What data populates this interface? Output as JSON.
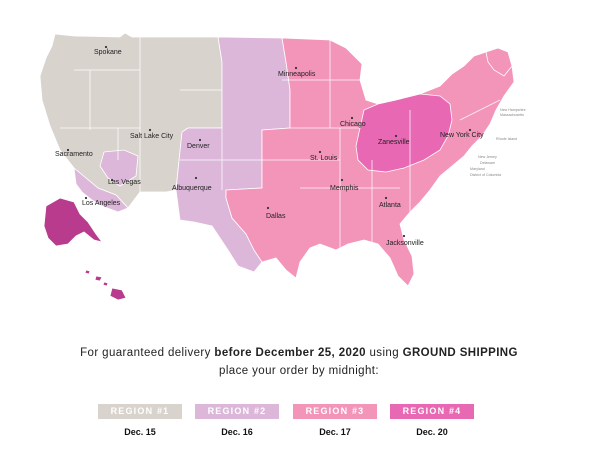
{
  "map": {
    "colors": {
      "region1": "#d9d3ce",
      "region2": "#ddb7da",
      "region3": "#f394b9",
      "region4": "#e868b4",
      "region4_dark": "#b83b8e",
      "border": "#ffffff",
      "dot": "#333333"
    },
    "cities": [
      {
        "name": "Spokane",
        "region": 1
      },
      {
        "name": "Salt Lake City",
        "region": 1
      },
      {
        "name": "Sacramento",
        "region": 1
      },
      {
        "name": "Las Vegas",
        "region": 2
      },
      {
        "name": "Los Angeles",
        "region": 2
      },
      {
        "name": "Denver",
        "region": 2
      },
      {
        "name": "Albuquerque",
        "region": 2
      },
      {
        "name": "Minneapolis",
        "region": 3
      },
      {
        "name": "Chicago",
        "region": 3
      },
      {
        "name": "St. Louis",
        "region": 3
      },
      {
        "name": "Memphis",
        "region": 3
      },
      {
        "name": "Dallas",
        "region": 3
      },
      {
        "name": "Atlanta",
        "region": 3
      },
      {
        "name": "Jacksonville",
        "region": 3
      },
      {
        "name": "Zanesville",
        "region": 4
      },
      {
        "name": "New York City",
        "region": 3
      }
    ],
    "state_labels": [
      "New Hampshire",
      "Massachusetts",
      "Rhode Island",
      "New Jersey",
      "Delaware",
      "Maryland",
      "District of Columbia"
    ]
  },
  "message": {
    "line1_pre": "For guaranteed delivery ",
    "line1_bold1": "before December 25, 2020",
    "line1_mid": " using ",
    "line1_bold2": "GROUND SHIPPING",
    "line2": "place your order by midnight:"
  },
  "legend": [
    {
      "label": "REGION #1",
      "date": "Dec. 15",
      "color": "#d9d3ce"
    },
    {
      "label": "REGION #2",
      "date": "Dec. 16",
      "color": "#ddb7da"
    },
    {
      "label": "REGION #3",
      "date": "Dec. 17",
      "color": "#f394b9"
    },
    {
      "label": "REGION #4",
      "date": "Dec. 20",
      "color": "#e868b4"
    }
  ]
}
